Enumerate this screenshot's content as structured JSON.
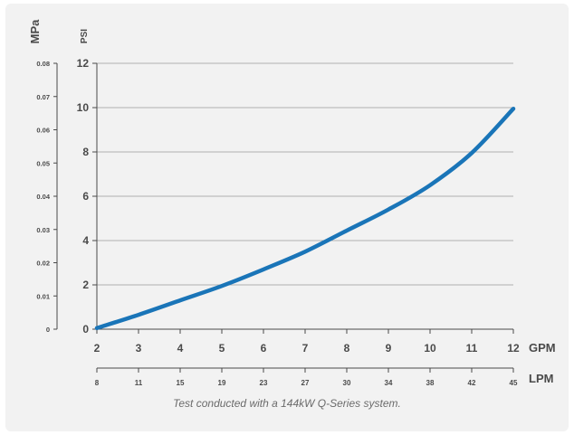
{
  "chart_data": {
    "type": "line",
    "caption": "Test conducted with a 144kW Q-Series system.",
    "axes": {
      "mpa": {
        "label": "MPa",
        "ticks": [
          "0",
          "0.01",
          "0.02",
          "0.03",
          "0.04",
          "0.05",
          "0.06",
          "0.07",
          "0.08"
        ],
        "range": [
          0,
          0.08
        ]
      },
      "psi": {
        "label": "PSI",
        "ticks": [
          "0",
          "2",
          "4",
          "6",
          "8",
          "10",
          "12"
        ],
        "range": [
          0,
          12
        ]
      },
      "gpm": {
        "label": "GPM",
        "ticks": [
          "2",
          "3",
          "4",
          "5",
          "6",
          "7",
          "8",
          "9",
          "10",
          "11",
          "12"
        ],
        "range": [
          2,
          12
        ]
      },
      "lpm": {
        "label": "LPM",
        "ticks": [
          "8",
          "11",
          "15",
          "19",
          "23",
          "27",
          "30",
          "34",
          "38",
          "42",
          "45"
        ]
      }
    },
    "grid": true,
    "series": [
      {
        "color": "#1a75b8",
        "x": [
          2,
          3,
          4,
          5,
          6,
          7,
          8,
          9,
          10,
          11,
          12
        ],
        "y": [
          0.05,
          0.65,
          1.3,
          1.95,
          2.7,
          3.5,
          4.45,
          5.4,
          6.5,
          7.95,
          9.95
        ]
      }
    ],
    "colors": {
      "line": "#1a75b8",
      "text": "#4a4a4a",
      "grid": "#b0b0b0",
      "background": "#f2f2f2"
    }
  }
}
